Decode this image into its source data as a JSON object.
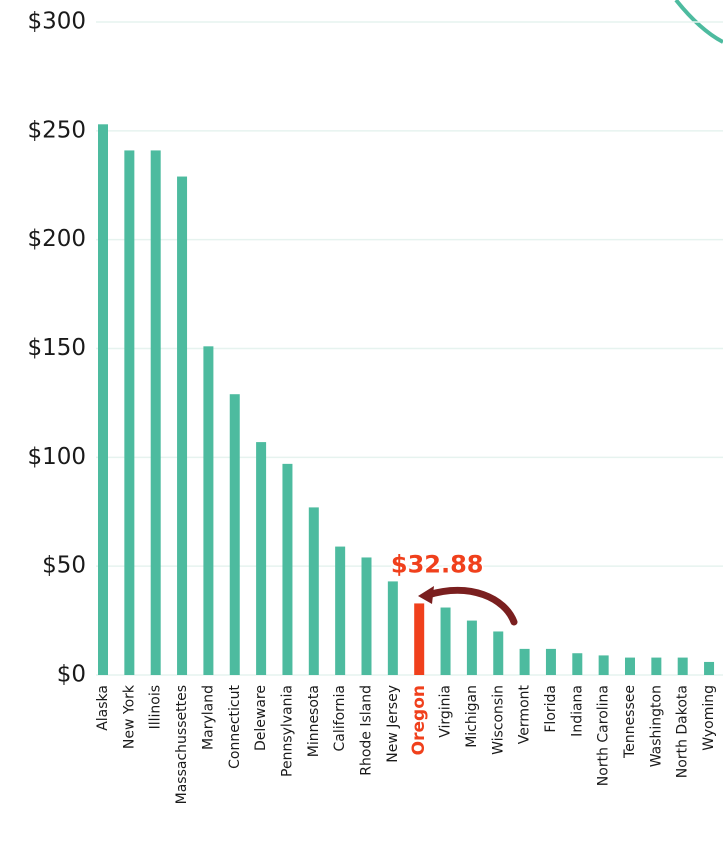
{
  "chart_data": {
    "type": "bar",
    "categories": [
      "Alaska",
      "New York",
      "Illinois",
      "Massachussettes",
      "Maryland",
      "Connecticut",
      "Deleware",
      "Pennsylvania",
      "Minnesota",
      "California",
      "Rhode Island",
      "New Jersey",
      "Oregon",
      "Virginia",
      "Michigan",
      "Wisconsin",
      "Vermont",
      "Florida",
      "Indiana",
      "North Carolina",
      "Tennessee",
      "Washington",
      "North Dakota",
      "Wyoming"
    ],
    "values": [
      253,
      241,
      241,
      229,
      151,
      129,
      107,
      97,
      77,
      59,
      54,
      43,
      32.88,
      31,
      25,
      20,
      12,
      12,
      10,
      9,
      8,
      8,
      8,
      6
    ],
    "value_labels": [
      null,
      null,
      null,
      null,
      null,
      null,
      null,
      null,
      null,
      null,
      null,
      null,
      "$32.88",
      null,
      null,
      null,
      null,
      null,
      null,
      null,
      null,
      null,
      null,
      null
    ],
    "colors": [
      "#4dbb9f",
      "#4dbb9f",
      "#4dbb9f",
      "#4dbb9f",
      "#4dbb9f",
      "#4dbb9f",
      "#4dbb9f",
      "#4dbb9f",
      "#4dbb9f",
      "#4dbb9f",
      "#4dbb9f",
      "#4dbb9f",
      "#f0401c",
      "#4dbb9f",
      "#4dbb9f",
      "#4dbb9f",
      "#4dbb9f",
      "#4dbb9f",
      "#4dbb9f",
      "#4dbb9f",
      "#4dbb9f",
      "#4dbb9f",
      "#4dbb9f",
      "#4dbb9f"
    ],
    "ylim": [
      0,
      300
    ],
    "yticks": [
      {
        "value": 0,
        "label": "$0"
      },
      {
        "value": 50,
        "label": "$50"
      },
      {
        "value": 100,
        "label": "$100"
      },
      {
        "value": 150,
        "label": "$150"
      },
      {
        "value": 200,
        "label": "$200"
      },
      {
        "value": 250,
        "label": "$250"
      },
      {
        "value": 300,
        "label": "$300"
      }
    ],
    "grid": true
  }
}
